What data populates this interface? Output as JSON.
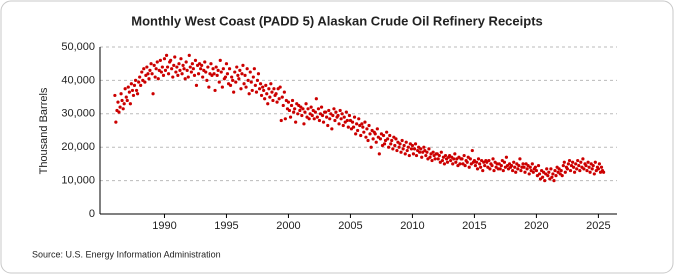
{
  "chart_data": {
    "type": "scatter",
    "title": "Monthly West Coast (PADD 5) Alaskan Crude Oil Refinery Receipts",
    "y_label": "Thousand Barrels",
    "source": "Source: U.S. Energy Information Administration",
    "color": "#cc0000",
    "grid": true,
    "xlim": [
      1984.8,
      2026.5
    ],
    "xticks": [
      1990,
      1995,
      2000,
      2005,
      2010,
      2015,
      2020,
      2025
    ],
    "ylim": [
      0,
      50000
    ],
    "yticks": [
      0,
      {
        "value": 10000,
        "label": "10,000"
      },
      {
        "value": 20000,
        "label": "20,000"
      },
      {
        "value": 30000,
        "label": "30,000"
      },
      {
        "value": 40000,
        "label": "40,000"
      },
      {
        "value": 50000,
        "label": "50,000"
      }
    ],
    "x": [
      1986,
      1986.08,
      1986.17,
      1986.25,
      1986.33,
      1986.42,
      1986.5,
      1986.58,
      1986.67,
      1986.75,
      1986.83,
      1986.92,
      1987,
      1987.08,
      1987.17,
      1987.25,
      1987.33,
      1987.42,
      1987.5,
      1987.58,
      1987.67,
      1987.75,
      1987.83,
      1987.92,
      1988,
      1988.08,
      1988.17,
      1988.25,
      1988.33,
      1988.42,
      1988.5,
      1988.58,
      1988.67,
      1988.75,
      1988.83,
      1988.92,
      1989,
      1989.08,
      1989.17,
      1989.25,
      1989.33,
      1989.42,
      1989.5,
      1989.58,
      1989.67,
      1989.75,
      1989.83,
      1989.92,
      1990,
      1990.08,
      1990.17,
      1990.25,
      1990.33,
      1990.42,
      1990.5,
      1990.58,
      1990.67,
      1990.75,
      1990.83,
      1990.92,
      1991,
      1991.08,
      1991.17,
      1991.25,
      1991.33,
      1991.42,
      1991.5,
      1991.58,
      1991.67,
      1991.75,
      1991.83,
      1991.92,
      1992,
      1992.08,
      1992.17,
      1992.25,
      1992.33,
      1992.42,
      1992.5,
      1992.58,
      1992.67,
      1992.75,
      1992.83,
      1992.92,
      1993,
      1993.08,
      1993.17,
      1993.25,
      1993.33,
      1993.42,
      1993.5,
      1993.58,
      1993.67,
      1993.75,
      1993.83,
      1993.92,
      1994,
      1994.08,
      1994.17,
      1994.25,
      1994.33,
      1994.42,
      1994.5,
      1994.58,
      1994.67,
      1994.75,
      1994.83,
      1994.92,
      1995,
      1995.08,
      1995.17,
      1995.25,
      1995.33,
      1995.42,
      1995.5,
      1995.58,
      1995.67,
      1995.75,
      1995.83,
      1995.92,
      1996,
      1996.08,
      1996.17,
      1996.25,
      1996.33,
      1996.42,
      1996.5,
      1996.58,
      1996.67,
      1996.75,
      1996.83,
      1996.92,
      1997,
      1997.08,
      1997.17,
      1997.25,
      1997.33,
      1997.42,
      1997.5,
      1997.58,
      1997.67,
      1997.75,
      1997.83,
      1997.92,
      1998,
      1998.08,
      1998.17,
      1998.25,
      1998.33,
      1998.42,
      1998.5,
      1998.58,
      1998.67,
      1998.75,
      1998.83,
      1998.92,
      1999,
      1999.08,
      1999.17,
      1999.25,
      1999.33,
      1999.42,
      1999.5,
      1999.58,
      1999.67,
      1999.75,
      1999.83,
      1999.92,
      2000,
      2000.08,
      2000.17,
      2000.25,
      2000.33,
      2000.42,
      2000.5,
      2000.58,
      2000.67,
      2000.75,
      2000.83,
      2000.92,
      2001,
      2001.08,
      2001.17,
      2001.25,
      2001.33,
      2001.42,
      2001.5,
      2001.58,
      2001.67,
      2001.75,
      2001.83,
      2001.92,
      2002,
      2002.08,
      2002.17,
      2002.25,
      2002.33,
      2002.42,
      2002.5,
      2002.58,
      2002.67,
      2002.75,
      2002.83,
      2002.92,
      2003,
      2003.08,
      2003.17,
      2003.25,
      2003.33,
      2003.42,
      2003.5,
      2003.58,
      2003.67,
      2003.75,
      2003.83,
      2003.92,
      2004,
      2004.08,
      2004.17,
      2004.25,
      2004.33,
      2004.42,
      2004.5,
      2004.58,
      2004.67,
      2004.75,
      2004.83,
      2004.92,
      2005,
      2005.08,
      2005.17,
      2005.25,
      2005.33,
      2005.42,
      2005.5,
      2005.58,
      2005.67,
      2005.75,
      2005.83,
      2005.92,
      2006,
      2006.08,
      2006.17,
      2006.25,
      2006.33,
      2006.42,
      2006.5,
      2006.58,
      2006.67,
      2006.75,
      2006.83,
      2006.92,
      2007,
      2007.08,
      2007.17,
      2007.25,
      2007.33,
      2007.42,
      2007.5,
      2007.58,
      2007.67,
      2007.75,
      2007.83,
      2007.92,
      2008,
      2008.08,
      2008.17,
      2008.25,
      2008.33,
      2008.42,
      2008.5,
      2008.58,
      2008.67,
      2008.75,
      2008.83,
      2008.92,
      2009,
      2009.08,
      2009.17,
      2009.25,
      2009.33,
      2009.42,
      2009.5,
      2009.58,
      2009.67,
      2009.75,
      2009.83,
      2009.92,
      2010,
      2010.08,
      2010.17,
      2010.25,
      2010.33,
      2010.42,
      2010.5,
      2010.58,
      2010.67,
      2010.75,
      2010.83,
      2010.92,
      2011,
      2011.08,
      2011.17,
      2011.25,
      2011.33,
      2011.42,
      2011.5,
      2011.58,
      2011.67,
      2011.75,
      2011.83,
      2011.92,
      2012,
      2012.08,
      2012.17,
      2012.25,
      2012.33,
      2012.42,
      2012.5,
      2012.58,
      2012.67,
      2012.75,
      2012.83,
      2012.92,
      2013,
      2013.08,
      2013.17,
      2013.25,
      2013.33,
      2013.42,
      2013.5,
      2013.58,
      2013.67,
      2013.75,
      2013.83,
      2013.92,
      2014,
      2014.08,
      2014.17,
      2014.25,
      2014.33,
      2014.42,
      2014.5,
      2014.58,
      2014.67,
      2014.75,
      2014.83,
      2014.92,
      2015,
      2015.08,
      2015.17,
      2015.25,
      2015.33,
      2015.42,
      2015.5,
      2015.58,
      2015.67,
      2015.75,
      2015.83,
      2015.92,
      2016,
      2016.08,
      2016.17,
      2016.25,
      2016.33,
      2016.42,
      2016.5,
      2016.58,
      2016.67,
      2016.75,
      2016.83,
      2016.92,
      2017,
      2017.08,
      2017.17,
      2017.25,
      2017.33,
      2017.42,
      2017.5,
      2017.58,
      2017.67,
      2017.75,
      2017.83,
      2017.92,
      2018,
      2018.08,
      2018.17,
      2018.25,
      2018.33,
      2018.42,
      2018.5,
      2018.58,
      2018.67,
      2018.75,
      2018.83,
      2018.92,
      2019,
      2019.08,
      2019.17,
      2019.25,
      2019.33,
      2019.42,
      2019.5,
      2019.58,
      2019.67,
      2019.75,
      2019.83,
      2019.92,
      2020,
      2020.08,
      2020.17,
      2020.25,
      2020.33,
      2020.42,
      2020.5,
      2020.58,
      2020.67,
      2020.75,
      2020.83,
      2020.92,
      2021,
      2021.08,
      2021.17,
      2021.25,
      2021.33,
      2021.42,
      2021.5,
      2021.58,
      2021.67,
      2021.75,
      2021.83,
      2021.92,
      2022,
      2022.08,
      2022.17,
      2022.25,
      2022.33,
      2022.42,
      2022.5,
      2022.58,
      2022.67,
      2022.75,
      2022.83,
      2022.92,
      2023,
      2023.08,
      2023.17,
      2023.25,
      2023.33,
      2023.42,
      2023.5,
      2023.58,
      2023.67,
      2023.75,
      2023.83,
      2023.92,
      2024,
      2024.08,
      2024.17,
      2024.25,
      2024.33,
      2024.42,
      2024.5,
      2024.58,
      2024.67,
      2024.75,
      2024.83,
      2024.92,
      2025,
      2025.08,
      2025.17,
      2025.25,
      2025.33,
      2025.42
    ],
    "values": [
      35500,
      27500,
      31000,
      33500,
      30500,
      32000,
      36000,
      34000,
      31500,
      33000,
      37500,
      35000,
      34000,
      38000,
      36500,
      33000,
      39000,
      37000,
      35500,
      38500,
      40000,
      37000,
      36000,
      39500,
      41000,
      38500,
      42500,
      40000,
      43500,
      39500,
      41500,
      44000,
      42000,
      40500,
      43000,
      45000,
      42000,
      36000,
      44500,
      41000,
      43500,
      45500,
      40500,
      43000,
      46000,
      42500,
      44000,
      41500,
      46500,
      43000,
      47500,
      44000,
      42000,
      45500,
      46000,
      43500,
      41000,
      44500,
      47000,
      42500,
      44000,
      41500,
      45000,
      43000,
      46500,
      42000,
      44500,
      43500,
      40500,
      45500,
      43000,
      41000,
      47500,
      44000,
      42500,
      45000,
      43500,
      41500,
      46000,
      38500,
      44500,
      42000,
      45000,
      43500,
      44500,
      41000,
      43000,
      45500,
      42500,
      40000,
      44000,
      38000,
      42000,
      45000,
      41500,
      43500,
      42000,
      37000,
      44000,
      41500,
      43000,
      39500,
      46000,
      42500,
      38000,
      43500,
      40500,
      41000,
      45000,
      42000,
      39000,
      43500,
      38500,
      41000,
      40000,
      36500,
      42500,
      39500,
      44000,
      41500,
      40500,
      43000,
      37500,
      42000,
      44500,
      39000,
      41500,
      38000,
      43500,
      40000,
      36000,
      42500,
      39500,
      37000,
      41000,
      43500,
      38500,
      36500,
      40000,
      42000,
      37500,
      39000,
      35500,
      38000,
      37000,
      34500,
      38500,
      36000,
      33000,
      37500,
      35000,
      39000,
      36500,
      34000,
      37500,
      35500,
      36000,
      33500,
      37500,
      34500,
      38000,
      28000,
      35000,
      32500,
      36500,
      28500,
      34000,
      31500,
      33500,
      31000,
      29000,
      32500,
      34000,
      30500,
      31500,
      27500,
      33000,
      30000,
      32500,
      31000,
      32000,
      29500,
      31500,
      27000,
      30500,
      33000,
      29000,
      31500,
      28500,
      30000,
      32000,
      29500,
      31000,
      28500,
      30500,
      34500,
      29000,
      31500,
      28000,
      30000,
      32000,
      29500,
      27500,
      30500,
      30500,
      29000,
      26500,
      31000,
      28500,
      30000,
      25500,
      29500,
      31500,
      28000,
      30500,
      29000,
      29500,
      27000,
      31000,
      28500,
      30000,
      26500,
      29000,
      27500,
      30500,
      28000,
      26000,
      29500,
      28000,
      25500,
      27500,
      26000,
      29000,
      24000,
      27000,
      25000,
      28500,
      26500,
      23500,
      27000,
      26000,
      24500,
      27500,
      23000,
      25500,
      22000,
      26500,
      24000,
      20000,
      25000,
      22500,
      24500,
      24000,
      21500,
      25500,
      23000,
      18000,
      22500,
      24000,
      20500,
      23500,
      21000,
      22000,
      24500,
      22500,
      20000,
      23500,
      21000,
      22000,
      19500,
      23000,
      20500,
      22500,
      19000,
      21500,
      20000,
      21000,
      18500,
      22000,
      19500,
      20500,
      18000,
      21500,
      19000,
      20000,
      17500,
      21000,
      19500,
      20500,
      18000,
      19500,
      21000,
      17500,
      19000,
      20000,
      18500,
      19500,
      17000,
      18500,
      20000,
      19000,
      17500,
      18500,
      16500,
      19500,
      17000,
      18000,
      16000,
      18500,
      17500,
      16500,
      18000,
      18000,
      16500,
      17500,
      15500,
      18500,
      16000,
      17000,
      15000,
      17500,
      16500,
      15500,
      17000,
      17500,
      16000,
      17000,
      15000,
      16500,
      18000,
      15500,
      16500,
      14500,
      17000,
      15000,
      16500,
      16500,
      15000,
      17500,
      14500,
      16000,
      15500,
      17000,
      14000,
      16500,
      15000,
      19000,
      15500,
      16000,
      14500,
      15500,
      13500,
      16500,
      15000,
      14000,
      16000,
      13000,
      15500,
      14500,
      16000,
      15500,
      14000,
      16000,
      13500,
      15000,
      14500,
      16500,
      13000,
      15500,
      14000,
      15000,
      13500,
      15000,
      13500,
      14500,
      16000,
      13000,
      15500,
      14000,
      17000,
      14500,
      13500,
      15000,
      14000,
      14500,
      13000,
      15500,
      14000,
      12500,
      15000,
      13500,
      14500,
      16500,
      13000,
      14000,
      15000,
      14000,
      12500,
      15000,
      13500,
      14500,
      12000,
      14000,
      13000,
      15000,
      12500,
      13500,
      14000,
      13000,
      11500,
      14500,
      12000,
      10500,
      13000,
      11000,
      12500,
      10000,
      12000,
      13500,
      11500,
      12500,
      10500,
      13500,
      11000,
      12000,
      10000,
      13000,
      11500,
      14000,
      12500,
      13500,
      12000,
      13000,
      11500,
      14500,
      15500,
      12500,
      14000,
      13500,
      15000,
      16000,
      13000,
      14500,
      15500,
      14000,
      12500,
      15000,
      13500,
      16000,
      14500,
      13000,
      15500,
      14000,
      16500,
      13500,
      15000,
      14500,
      13000,
      15500,
      14000,
      12500,
      15000,
      13500,
      14500,
      12000,
      15500,
      13000,
      14000,
      13500,
      15000,
      12500,
      14000,
      13000,
      12500
    ]
  }
}
